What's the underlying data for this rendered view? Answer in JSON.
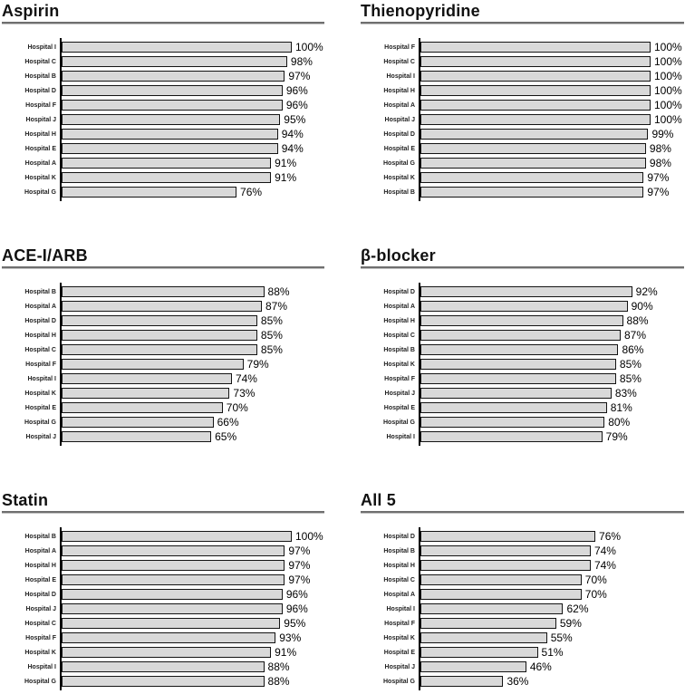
{
  "style": {
    "bar_fill": "#d9d9d9",
    "bar_border": "#141414",
    "axis_color": "#000000",
    "rule_color": "#6f6f6f"
  },
  "value_suffix": "%",
  "chart_data": [
    {
      "type": "bar",
      "orientation": "horizontal",
      "title": "Aspirin",
      "categories": [
        "Hospital I",
        "Hospital C",
        "Hospital B",
        "Hospital D",
        "Hospital F",
        "Hospital J",
        "Hospital H",
        "Hospital E",
        "Hospital A",
        "Hospital K",
        "Hospital G"
      ],
      "values": [
        100,
        98,
        97,
        96,
        96,
        95,
        94,
        94,
        91,
        91,
        76
      ],
      "xlim": [
        0,
        100
      ],
      "grid": false,
      "legend": false
    },
    {
      "type": "bar",
      "orientation": "horizontal",
      "title": "Thienopyridine",
      "categories": [
        "Hospital F",
        "Hospital C",
        "Hospital I",
        "Hospital H",
        "Hospital A",
        "Hospital J",
        "Hospital D",
        "Hospital E",
        "Hospital G",
        "Hospital K",
        "Hospital B"
      ],
      "values": [
        100,
        100,
        100,
        100,
        100,
        100,
        99,
        98,
        98,
        97,
        97
      ],
      "xlim": [
        0,
        100
      ],
      "grid": false,
      "legend": false
    },
    {
      "type": "bar",
      "orientation": "horizontal",
      "title": "ACE-I/ARB",
      "categories": [
        "Hospital B",
        "Hospital A",
        "Hospital D",
        "Hospital H",
        "Hospital C",
        "Hospital F",
        "Hospital I",
        "Hospital K",
        "Hospital E",
        "Hospital G",
        "Hospital J"
      ],
      "values": [
        88,
        87,
        85,
        85,
        85,
        79,
        74,
        73,
        70,
        66,
        65
      ],
      "xlim": [
        0,
        100
      ],
      "grid": false,
      "legend": false
    },
    {
      "type": "bar",
      "orientation": "horizontal",
      "title": "β-blocker",
      "categories": [
        "Hospital D",
        "Hospital A",
        "Hospital H",
        "Hospital C",
        "Hospital B",
        "Hospital K",
        "Hospital F",
        "Hospital J",
        "Hospital E",
        "Hospital G",
        "Hospital I"
      ],
      "values": [
        92,
        90,
        88,
        87,
        86,
        85,
        85,
        83,
        81,
        80,
        79
      ],
      "xlim": [
        0,
        100
      ],
      "grid": false,
      "legend": false
    },
    {
      "type": "bar",
      "orientation": "horizontal",
      "title": "Statin",
      "categories": [
        "Hospital B",
        "Hospital A",
        "Hospital H",
        "Hospital E",
        "Hospital D",
        "Hospital J",
        "Hospital C",
        "Hospital F",
        "Hospital K",
        "Hospital I",
        "Hospital G"
      ],
      "values": [
        100,
        97,
        97,
        97,
        96,
        96,
        95,
        93,
        91,
        88,
        88
      ],
      "xlim": [
        0,
        100
      ],
      "grid": false,
      "legend": false
    },
    {
      "type": "bar",
      "orientation": "horizontal",
      "title": "All 5",
      "categories": [
        "Hospital D",
        "Hospital B",
        "Hospital H",
        "Hospital C",
        "Hospital A",
        "Hospital I",
        "Hospital F",
        "Hospital K",
        "Hospital E",
        "Hospital J",
        "Hospital G"
      ],
      "values": [
        76,
        74,
        74,
        70,
        70,
        62,
        59,
        55,
        51,
        46,
        36
      ],
      "xlim": [
        0,
        100
      ],
      "grid": false,
      "legend": false
    }
  ]
}
